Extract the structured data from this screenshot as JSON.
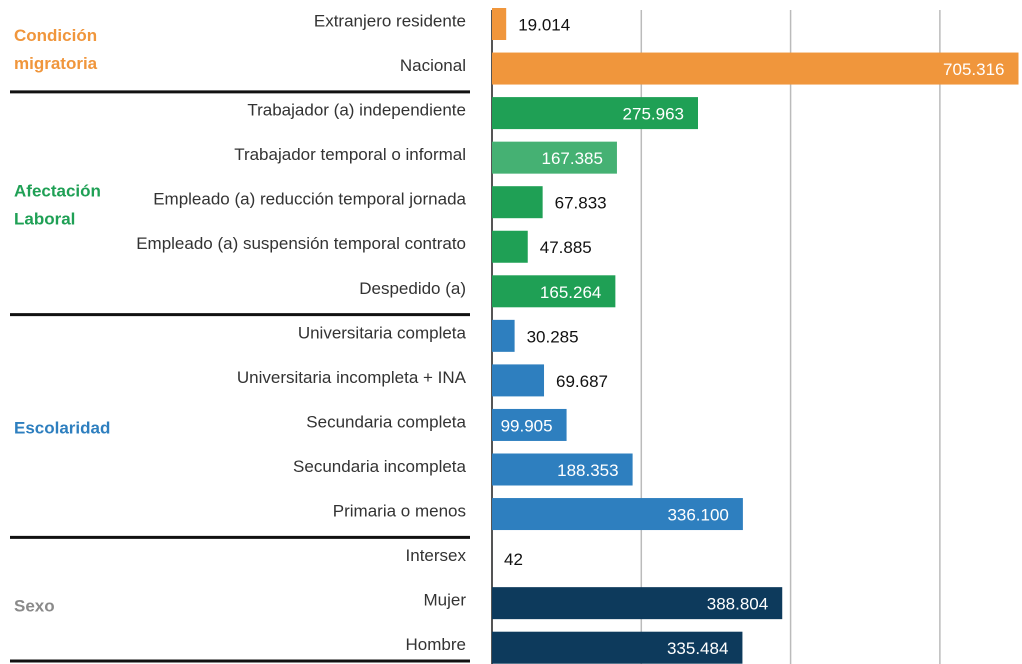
{
  "chart_data": {
    "type": "bar",
    "orientation": "horizontal",
    "xlim": [
      0,
      710000
    ],
    "xticks": [
      0,
      200000,
      400000,
      600000
    ],
    "grid": true,
    "groups": [
      {
        "name": [
          "Condición",
          "migratoria"
        ],
        "color": "#f0963c",
        "categories": [
          "Extranjero residente",
          "Nacional"
        ],
        "values": [
          19014,
          705316
        ],
        "value_labels": [
          "19.014",
          "705.316"
        ],
        "colors": [
          "#f0963c",
          "#f0963c"
        ]
      },
      {
        "name": [
          "Afectación",
          "Laboral"
        ],
        "color": "#1fa055",
        "categories": [
          "Trabajador (a) independiente",
          "Trabajador temporal o informal",
          "Empleado (a) reducción temporal jornada",
          "Empleado (a) suspensión temporal contrato",
          "Despedido (a)"
        ],
        "values": [
          275963,
          167385,
          67833,
          47885,
          165264
        ],
        "value_labels": [
          "275.963",
          "167.385",
          "67.833",
          "47.885",
          "165.264"
        ],
        "colors": [
          "#1fa055",
          "#45b173",
          "#1fa055",
          "#1fa055",
          "#1fa055"
        ]
      },
      {
        "name": [
          "Escolaridad"
        ],
        "color": "#2e7fbf",
        "categories": [
          "Universitaria completa",
          "Universitaria incompleta + INA",
          "Secundaria completa",
          "Secundaria incompleta",
          "Primaria o menos"
        ],
        "values": [
          30285,
          69687,
          99905,
          188353,
          336100
        ],
        "value_labels": [
          "30.285",
          "69.687",
          "99.905",
          "188.353",
          "336.100"
        ],
        "colors": [
          "#2e7fbf",
          "#2e7fbf",
          "#2e7fbf",
          "#2e7fbf",
          "#2e7fbf"
        ]
      },
      {
        "name": [
          "Sexo"
        ],
        "color": "#8a8a8a",
        "categories": [
          "Intersex",
          "Mujer",
          "Hombre"
        ],
        "values": [
          42,
          388804,
          335484
        ],
        "value_labels": [
          "42",
          "388.804",
          "335.484"
        ],
        "colors": [
          "#0d3a5c",
          "#0d3a5c",
          "#0d3a5c"
        ]
      }
    ]
  }
}
